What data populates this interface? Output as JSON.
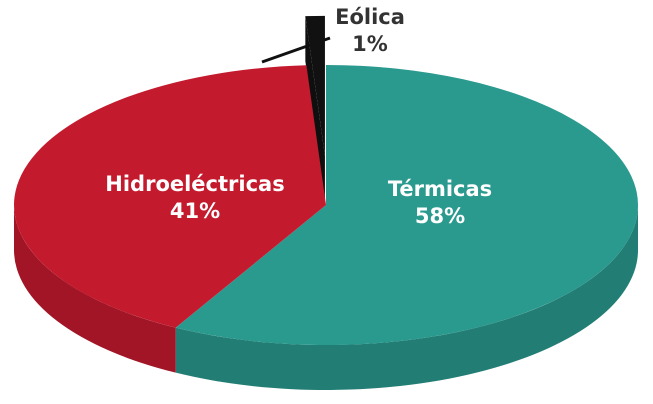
{
  "chart_data": {
    "type": "pie",
    "categories": [
      "Térmicas",
      "Hidroeléctricas",
      "Eólica"
    ],
    "values": [
      58,
      41,
      1
    ],
    "value_labels": [
      "58%",
      "41%",
      "1%"
    ],
    "colors": [
      "#2a9a8f",
      "#c41a2e",
      "#111111"
    ]
  }
}
